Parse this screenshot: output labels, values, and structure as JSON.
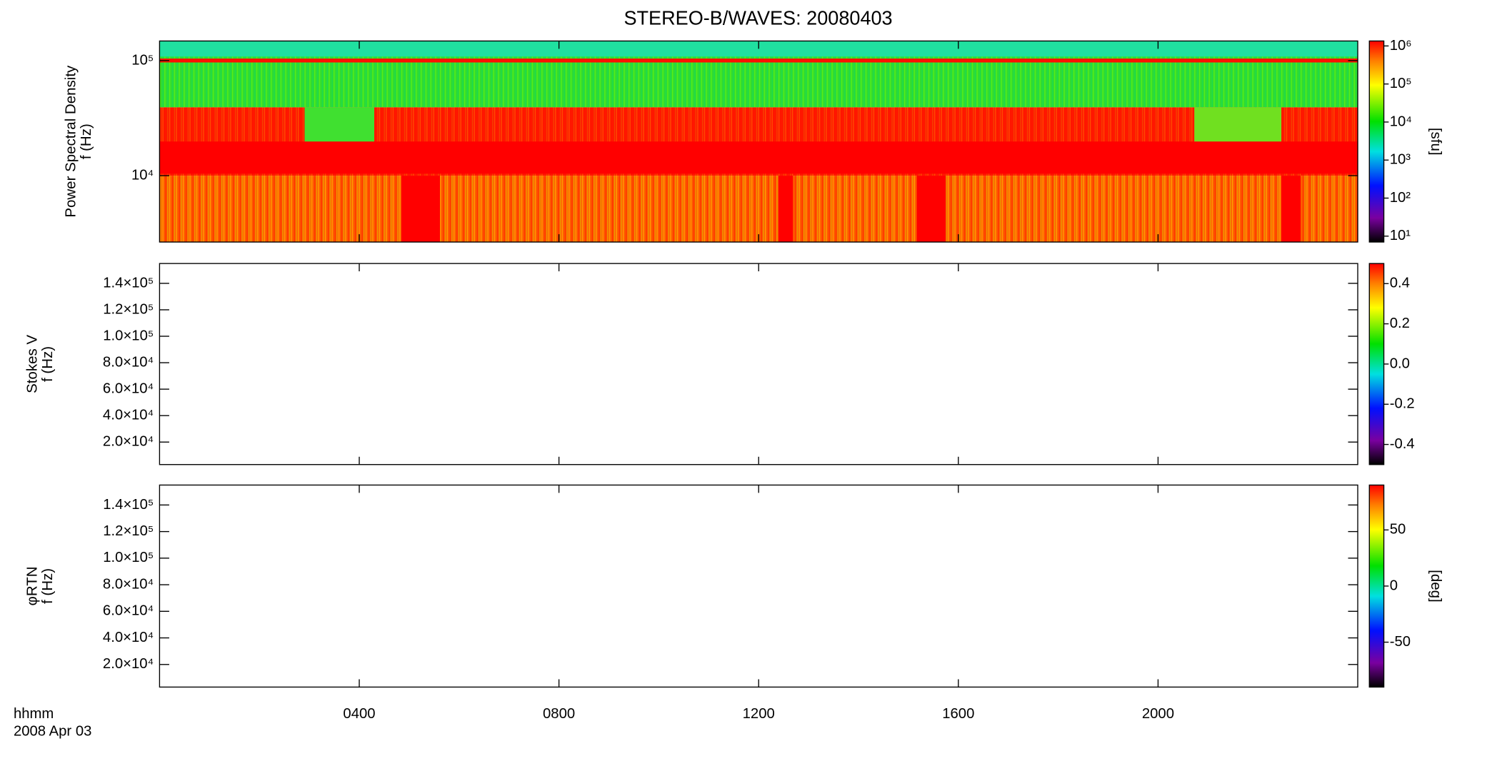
{
  "title": "STEREO-B/WAVES: 20080403",
  "xaxis": {
    "label_lines": [
      "hhmm",
      "2008 Apr 03"
    ],
    "xlim": [
      0,
      24
    ],
    "xticks": [
      {
        "value": 4,
        "label": "0400"
      },
      {
        "value": 8,
        "label": "0800"
      },
      {
        "value": 12,
        "label": "1200"
      },
      {
        "value": 16,
        "label": "1600"
      },
      {
        "value": 20,
        "label": "2000"
      }
    ]
  },
  "chart_data": [
    {
      "type": "spectrogram",
      "ylabel_lines": [
        "Power Spectral Density",
        "f (Hz)"
      ],
      "ylog": true,
      "ylim": [
        2650,
        148000
      ],
      "yticks": [
        {
          "value": 10000,
          "label": "10⁴"
        },
        {
          "value": 100000,
          "label": "10⁵"
        }
      ],
      "colorbar": {
        "label": "[sfu]",
        "log": true,
        "lim": [
          7,
          1350000
        ],
        "ticks": [
          {
            "value": 10,
            "label": "10¹"
          },
          {
            "value": 100,
            "label": "10²"
          },
          {
            "value": 1000,
            "label": "10³"
          },
          {
            "value": 10000,
            "label": "10⁴"
          },
          {
            "value": 100000,
            "label": "10⁵"
          },
          {
            "value": 1000000,
            "label": "10⁶"
          }
        ]
      }
    },
    {
      "type": "spectrogram",
      "ylabel_lines": [
        "Stokes V",
        "f (Hz)"
      ],
      "ylog": false,
      "ylim": [
        3000,
        155000
      ],
      "yticks": [
        {
          "value": 20000,
          "label": "2.0×10⁴"
        },
        {
          "value": 40000,
          "label": "4.0×10⁴"
        },
        {
          "value": 60000,
          "label": "6.0×10⁴"
        },
        {
          "value": 80000,
          "label": "8.0×10⁴"
        },
        {
          "value": 100000,
          "label": "1.0×10⁵"
        },
        {
          "value": 120000,
          "label": "1.2×10⁵"
        },
        {
          "value": 140000,
          "label": "1.4×10⁵"
        }
      ],
      "colorbar": {
        "log": false,
        "lim": [
          -0.5,
          0.5
        ],
        "ticks": [
          {
            "value": -0.4,
            "label": "-0.4"
          },
          {
            "value": -0.2,
            "label": "-0.2"
          },
          {
            "value": 0,
            "label": "0.0"
          },
          {
            "value": 0.2,
            "label": "0.2"
          },
          {
            "value": 0.4,
            "label": "0.4"
          }
        ]
      }
    },
    {
      "type": "spectrogram",
      "ylabel_lines": [
        "φRTN",
        "f (Hz)"
      ],
      "ylog": false,
      "ylim": [
        3000,
        155000
      ],
      "yticks": [
        {
          "value": 20000,
          "label": "2.0×10⁴"
        },
        {
          "value": 40000,
          "label": "4.0×10⁴"
        },
        {
          "value": 60000,
          "label": "6.0×10⁴"
        },
        {
          "value": 80000,
          "label": "8.0×10⁴"
        },
        {
          "value": 100000,
          "label": "1.0×10⁵"
        },
        {
          "value": 120000,
          "label": "1.2×10⁵"
        },
        {
          "value": 140000,
          "label": "1.4×10⁵"
        }
      ],
      "colorbar": {
        "label": "[deg]",
        "log": false,
        "lim": [
          -90,
          90
        ],
        "ticks": [
          -50,
          0,
          50
        ]
      }
    }
  ]
}
